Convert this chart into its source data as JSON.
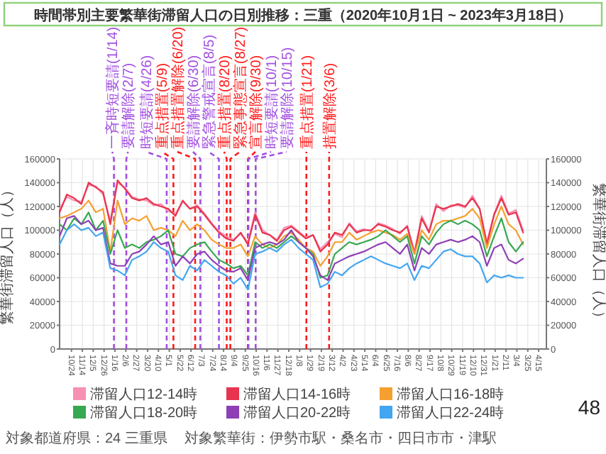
{
  "chart_data": {
    "type": "line",
    "title": "時間帯別主要繁華街滞留人口の日別推移：三重（2020年10月1日 ~ 2023年3月18日）",
    "ylabel": "繁華街滞留人口（人）",
    "y2label": "繁華街滞留人口（人）",
    "x": [
      "2020-10-01",
      "2020-10-15",
      "2020-10-29",
      "2020-11-12",
      "2020-11-26",
      "2020-12-10",
      "2020-12-24",
      "2021-01-07",
      "2021-01-21",
      "2021-02-04",
      "2021-02-18",
      "2021-03-04",
      "2021-03-18",
      "2021-04-01",
      "2021-04-15",
      "2021-04-29",
      "2021-05-13",
      "2021-05-27",
      "2021-06-10",
      "2021-06-24",
      "2021-07-08",
      "2021-07-22",
      "2021-08-05",
      "2021-08-19",
      "2021-09-02",
      "2021-09-16",
      "2021-09-30",
      "2021-10-14",
      "2021-10-28",
      "2021-11-11",
      "2021-11-25",
      "2021-12-09",
      "2021-12-23",
      "2022-01-06",
      "2022-01-20",
      "2022-02-03",
      "2022-02-17",
      "2022-03-03",
      "2022-03-17",
      "2022-03-31",
      "2022-04-14",
      "2022-04-28",
      "2022-05-12",
      "2022-05-26",
      "2022-06-09",
      "2022-06-23",
      "2022-07-07",
      "2022-07-21",
      "2022-08-04",
      "2022-08-18",
      "2022-09-01",
      "2022-09-15",
      "2022-09-29",
      "2022-10-13",
      "2022-10-27",
      "2022-11-10",
      "2022-11-24",
      "2022-12-08",
      "2022-12-22",
      "2023-01-05",
      "2023-01-19",
      "2023-02-02",
      "2023-02-16",
      "2023-03-02",
      "2023-03-16"
    ],
    "series": [
      {
        "name": "滞留人口12-14時",
        "color": "#f78fb3",
        "values": [
          118000,
          128000,
          125000,
          124000,
          138000,
          137000,
          130000,
          108000,
          140000,
          136000,
          128000,
          126000,
          125000,
          121000,
          122000,
          116000,
          114000,
          124000,
          118000,
          121000,
          114000,
          106000,
          99000,
          95000,
          92000,
          97000,
          90000,
          115000,
          100000,
          96000,
          92000,
          102000,
          104000,
          99000,
          94000,
          96000,
          84000,
          90000,
          97000,
          94000,
          106000,
          99000,
          101000,
          99000,
          106000,
          104000,
          101000,
          97000,
          104000,
          82000,
          112000,
          99000,
          122000,
          116000,
          121000,
          121000,
          119000,
          129000,
          118000,
          90000,
          114000,
          129000,
          114000,
          117000,
          100000
        ]
      },
      {
        "name": "滞留人口14-16時",
        "color": "#e8344e",
        "values": [
          115000,
          130000,
          127000,
          122000,
          140000,
          136000,
          132000,
          105000,
          142000,
          135000,
          127000,
          125000,
          127000,
          122000,
          120000,
          118000,
          112000,
          125000,
          118000,
          120000,
          113000,
          105000,
          98000,
          93000,
          91000,
          98000,
          88000,
          113000,
          98000,
          96000,
          91000,
          100000,
          103000,
          98000,
          93000,
          96000,
          82000,
          88000,
          98000,
          96000,
          105000,
          98000,
          100000,
          100000,
          105000,
          103000,
          100000,
          98000,
          103000,
          80000,
          110000,
          98000,
          120000,
          118000,
          120000,
          122000,
          120000,
          127000,
          118000,
          88000,
          113000,
          127000,
          113000,
          115000,
          98000
        ]
      },
      {
        "name": "滞留人口16-18時",
        "color": "#f5a030",
        "values": [
          110000,
          112000,
          115000,
          118000,
          125000,
          115000,
          118000,
          82000,
          125000,
          105000,
          110000,
          108000,
          112000,
          100000,
          102000,
          100000,
          95000,
          108000,
          100000,
          105000,
          100000,
          92000,
          88000,
          85000,
          85000,
          88000,
          78000,
          95000,
          88000,
          85000,
          88000,
          95000,
          98000,
          92000,
          85000,
          82000,
          70000,
          78000,
          90000,
          90000,
          98000,
          92000,
          95000,
          98000,
          100000,
          98000,
          96000,
          92000,
          97000,
          80000,
          100000,
          92000,
          105000,
          108000,
          108000,
          110000,
          112000,
          118000,
          110000,
          85000,
          105000,
          120000,
          105000,
          100000,
          88000
        ]
      },
      {
        "name": "滞留人口18-20時",
        "color": "#36a852",
        "values": [
          105000,
          100000,
          110000,
          105000,
          115000,
          100000,
          108000,
          80000,
          100000,
          85000,
          88000,
          85000,
          90000,
          92000,
          95000,
          100000,
          80000,
          78000,
          85000,
          88000,
          90000,
          82000,
          75000,
          72000,
          68000,
          70000,
          62000,
          90000,
          85000,
          88000,
          85000,
          90000,
          95000,
          90000,
          85000,
          80000,
          60000,
          62000,
          80000,
          85000,
          90000,
          88000,
          90000,
          92000,
          95000,
          100000,
          95000,
          90000,
          95000,
          72000,
          95000,
          88000,
          98000,
          105000,
          108000,
          105000,
          108000,
          105000,
          100000,
          78000,
          95000,
          110000,
          90000,
          82000,
          90000
        ]
      },
      {
        "name": "滞留人口20-22時",
        "color": "#8e3fb5",
        "values": [
          95000,
          110000,
          112000,
          105000,
          108000,
          100000,
          102000,
          72000,
          70000,
          70000,
          80000,
          82000,
          88000,
          95000,
          88000,
          90000,
          70000,
          78000,
          72000,
          80000,
          82000,
          75000,
          70000,
          66000,
          65000,
          68000,
          58000,
          85000,
          88000,
          90000,
          88000,
          92000,
          100000,
          90000,
          85000,
          78000,
          62000,
          58000,
          72000,
          75000,
          78000,
          80000,
          82000,
          85000,
          88000,
          90000,
          85000,
          80000,
          88000,
          66000,
          85000,
          80000,
          88000,
          90000,
          92000,
          90000,
          92000,
          95000,
          90000,
          70000,
          85000,
          88000,
          75000,
          72000,
          76000
        ]
      },
      {
        "name": "滞留人口22-24時",
        "color": "#43a6f0",
        "values": [
          88000,
          100000,
          105000,
          100000,
          102000,
          95000,
          98000,
          68000,
          66000,
          62000,
          75000,
          78000,
          82000,
          90000,
          85000,
          82000,
          62000,
          58000,
          70000,
          66000,
          75000,
          70000,
          65000,
          62000,
          55000,
          60000,
          50000,
          80000,
          82000,
          85000,
          82000,
          88000,
          92000,
          85000,
          80000,
          75000,
          52000,
          55000,
          65000,
          62000,
          68000,
          72000,
          75000,
          78000,
          75000,
          72000,
          70000,
          68000,
          72000,
          58000,
          70000,
          68000,
          75000,
          82000,
          84000,
          80000,
          78000,
          78000,
          72000,
          56000,
          62000,
          60000,
          62000,
          60000,
          60000
        ]
      }
    ],
    "xlim": [
      "2020-10-01",
      "2023-04-30"
    ],
    "xticks": [
      {
        "value": "2020-10-24",
        "label": "10/24"
      },
      {
        "value": "2020-11-14",
        "label": "11/14"
      },
      {
        "value": "2020-12-05",
        "label": "12/5"
      },
      {
        "value": "2020-12-26",
        "label": "12/26"
      },
      {
        "value": "2021-01-16",
        "label": "1/16"
      },
      {
        "value": "2021-02-06",
        "label": "2/6"
      },
      {
        "value": "2021-02-27",
        "label": "2/27"
      },
      {
        "value": "2021-03-20",
        "label": "3/20"
      },
      {
        "value": "2021-04-10",
        "label": "4/10"
      },
      {
        "value": "2021-05-01",
        "label": "5/1"
      },
      {
        "value": "2021-05-22",
        "label": "5/22"
      },
      {
        "value": "2021-06-12",
        "label": "6/12"
      },
      {
        "value": "2021-07-03",
        "label": "7/3"
      },
      {
        "value": "2021-07-24",
        "label": "7/24"
      },
      {
        "value": "2021-08-14",
        "label": "8/14"
      },
      {
        "value": "2021-09-04",
        "label": "9/4"
      },
      {
        "value": "2021-09-25",
        "label": "9/25"
      },
      {
        "value": "2021-10-16",
        "label": "10/16"
      },
      {
        "value": "2021-11-06",
        "label": "11/6"
      },
      {
        "value": "2021-11-27",
        "label": "11/27"
      },
      {
        "value": "2021-12-18",
        "label": "12/18"
      },
      {
        "value": "2022-01-08",
        "label": "1/8"
      },
      {
        "value": "2022-01-29",
        "label": "1/29"
      },
      {
        "value": "2022-02-19",
        "label": "2/19"
      },
      {
        "value": "2022-03-12",
        "label": "3/12"
      },
      {
        "value": "2022-04-02",
        "label": "4/2"
      },
      {
        "value": "2022-04-23",
        "label": "4/23"
      },
      {
        "value": "2022-05-14",
        "label": "5/14"
      },
      {
        "value": "2022-06-04",
        "label": "6/4"
      },
      {
        "value": "2022-06-25",
        "label": "6/25"
      },
      {
        "value": "2022-07-16",
        "label": "7/16"
      },
      {
        "value": "2022-08-06",
        "label": "8/6"
      },
      {
        "value": "2022-08-27",
        "label": "8/27"
      },
      {
        "value": "2022-09-17",
        "label": "9/17"
      },
      {
        "value": "2022-10-08",
        "label": "10/8"
      },
      {
        "value": "2022-10-29",
        "label": "10/29"
      },
      {
        "value": "2022-11-19",
        "label": "11/19"
      },
      {
        "value": "2022-12-10",
        "label": "12/10"
      },
      {
        "value": "2022-12-31",
        "label": "12/31"
      },
      {
        "value": "2023-01-21",
        "label": "1/21"
      },
      {
        "value": "2023-02-11",
        "label": "2/11"
      },
      {
        "value": "2023-03-04",
        "label": "3/4"
      },
      {
        "value": "2023-03-25",
        "label": "3/25"
      },
      {
        "value": "2023-04-15",
        "label": "4/15"
      }
    ],
    "ylim": [
      0,
      160000
    ],
    "yticks": [
      0,
      20000,
      40000,
      60000,
      80000,
      100000,
      120000,
      140000,
      160000
    ],
    "y2lim": [
      0,
      160000
    ],
    "y2ticks": [
      0,
      20000,
      40000,
      60000,
      80000,
      100000,
      120000,
      140000,
      160000
    ],
    "ref_lines": [
      {
        "axis": "x",
        "value": "2021-01-14",
        "label": "一斉時短要請(1/14)",
        "color": "#a24fe0",
        "line_style": "dashed"
      },
      {
        "axis": "x",
        "value": "2021-02-07",
        "label": "要請解除(2/7)",
        "color": "#a24fe0",
        "line_style": "dashed"
      },
      {
        "axis": "x",
        "value": "2021-04-26",
        "label": "時短要請(4/26)",
        "color": "#a24fe0",
        "line_style": "dashed"
      },
      {
        "axis": "x",
        "value": "2021-05-09",
        "label": "重点措置(5/9)",
        "color": "#ff1a1a",
        "line_style": "dashed"
      },
      {
        "axis": "x",
        "value": "2021-06-20",
        "label": "重点措置解除(6/20)",
        "color": "#ff1a1a",
        "line_style": "dashed"
      },
      {
        "axis": "x",
        "value": "2021-06-30",
        "label": "要請解除(6/30)",
        "color": "#a24fe0",
        "line_style": "dashed"
      },
      {
        "axis": "x",
        "value": "2021-08-05",
        "label": "緊急警戒宣言(8/5)",
        "color": "#a24fe0",
        "line_style": "dashed"
      },
      {
        "axis": "x",
        "value": "2021-08-20",
        "label": "重点措置(8/20)",
        "color": "#ff1a1a",
        "line_style": "dashed"
      },
      {
        "axis": "x",
        "value": "2021-08-27",
        "label": "緊急事態宣言(8/27)",
        "color": "#ff1a1a",
        "line_style": "dashed"
      },
      {
        "axis": "x",
        "value": "2021-09-30",
        "label": "宣言解除(9/30)",
        "color": "#ff1a1a",
        "line_style": "dashed"
      },
      {
        "axis": "x",
        "value": "2021-10-01",
        "label": "時短要請(10/1)",
        "color": "#a24fe0",
        "line_style": "dashed"
      },
      {
        "axis": "x",
        "value": "2021-10-15",
        "label": "要請解除(10/15)",
        "color": "#a24fe0",
        "line_style": "dashed"
      },
      {
        "axis": "x",
        "value": "2022-01-21",
        "label": "重点措置(1/21)",
        "color": "#ff1a1a",
        "line_style": "dashed"
      },
      {
        "axis": "x",
        "value": "2022-03-06",
        "label": "措置解除(3/6)",
        "color": "#ff1a1a",
        "line_style": "dashed"
      }
    ],
    "annotations": [
      "対象都道府県：24 三重県",
      "対象繁華街：伊勢市駅・桑名市・四日市市・津駅",
      "48"
    ],
    "grid": true,
    "legend": "bottom"
  }
}
